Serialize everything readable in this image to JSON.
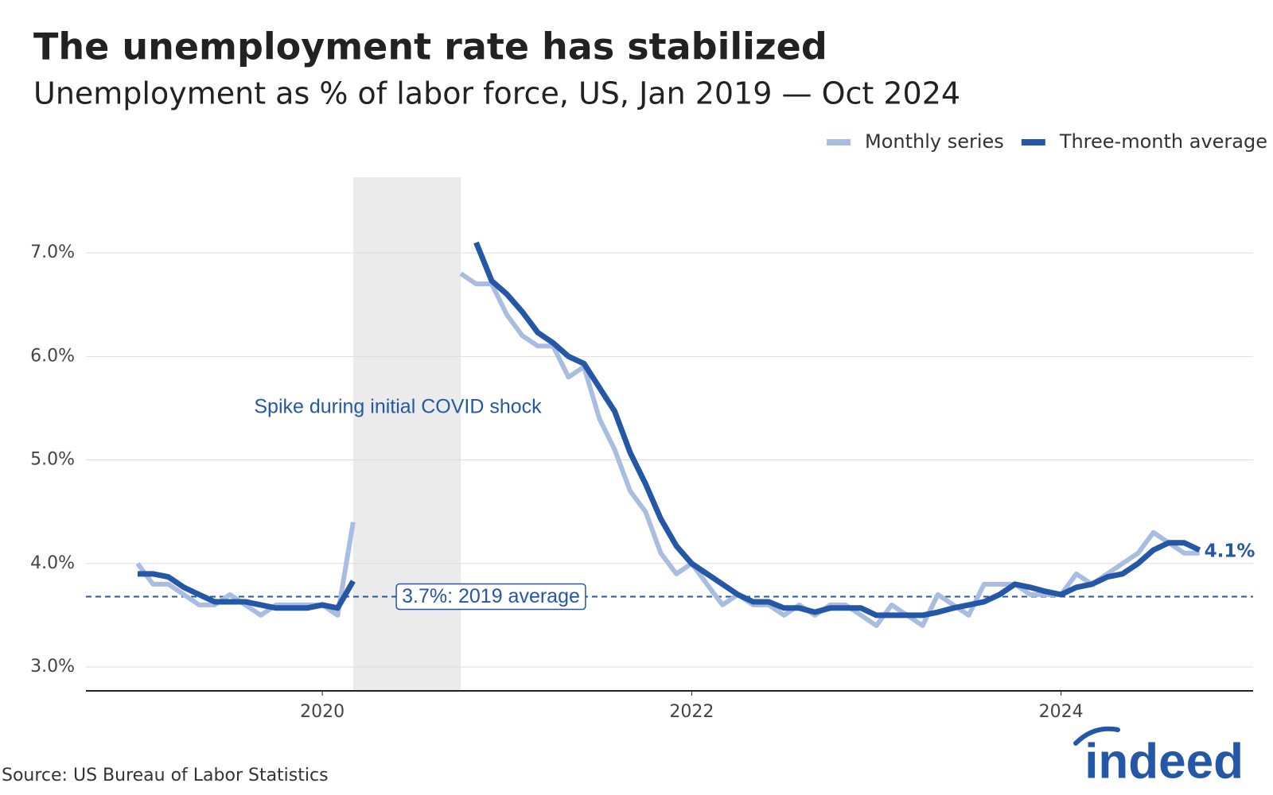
{
  "chart_data": {
    "type": "line",
    "title": "The unemployment rate has stabilized",
    "subtitle": "Unemployment as % of labor force, US, Jan 2019 — Oct 2024",
    "annotation": "Spike during initial COVID shock",
    "source": "Source: US Bureau of Labor Statistics",
    "logo": "indeed",
    "shade": [
      2020.167,
      2020.75
    ],
    "reference": {
      "value": 3.68,
      "label": "3.7%: 2019 average",
      "color": "#2557a7"
    },
    "xlim": [
      2018.72,
      2025.04
    ],
    "xticks": [
      2020,
      2022,
      2024
    ],
    "ylim": [
      2.77,
      7.73
    ],
    "yticks": [
      {
        "value": 3,
        "label": "3.0%"
      },
      {
        "value": 4,
        "label": "4.0%"
      },
      {
        "value": 5,
        "label": "5.0%"
      },
      {
        "value": 6,
        "label": "6.0%"
      },
      {
        "value": 7,
        "label": "7.0%"
      }
    ],
    "grid": true,
    "legend": "top-right",
    "x": [
      2019,
      2019.083,
      2019.167,
      2019.25,
      2019.333,
      2019.417,
      2019.5,
      2019.583,
      2019.667,
      2019.75,
      2019.833,
      2019.917,
      2020,
      2020.083,
      2020.167,
      2020.25,
      2020.333,
      2020.417,
      2020.5,
      2020.583,
      2020.667,
      2020.75,
      2020.833,
      2020.917,
      2021,
      2021.083,
      2021.167,
      2021.25,
      2021.333,
      2021.417,
      2021.5,
      2021.583,
      2021.667,
      2021.75,
      2021.833,
      2021.917,
      2022,
      2022.083,
      2022.167,
      2022.25,
      2022.333,
      2022.417,
      2022.5,
      2022.583,
      2022.667,
      2022.75,
      2022.833,
      2022.917,
      2023,
      2023.083,
      2023.167,
      2023.25,
      2023.333,
      2023.417,
      2023.5,
      2023.583,
      2023.667,
      2023.75,
      2023.833,
      2023.917,
      2024,
      2024.083,
      2024.167,
      2024.25,
      2024.333,
      2024.417,
      2024.5,
      2024.583,
      2024.667,
      2024.75
    ],
    "series": [
      {
        "name": "Monthly series",
        "color": "#a9bde1",
        "values": [
          4.0,
          3.8,
          3.8,
          3.7,
          3.6,
          3.6,
          3.7,
          3.6,
          3.5,
          3.6,
          3.6,
          3.6,
          3.6,
          3.5,
          4.4,
          null,
          null,
          null,
          null,
          null,
          null,
          6.8,
          6.7,
          6.7,
          6.4,
          6.2,
          6.1,
          6.1,
          5.8,
          5.9,
          5.4,
          5.1,
          4.7,
          4.5,
          4.1,
          3.9,
          4.0,
          3.8,
          3.6,
          3.7,
          3.6,
          3.6,
          3.5,
          3.6,
          3.5,
          3.6,
          3.6,
          3.5,
          3.4,
          3.6,
          3.5,
          3.4,
          3.7,
          3.6,
          3.5,
          3.8,
          3.8,
          3.8,
          3.7,
          3.7,
          3.7,
          3.9,
          3.8,
          3.9,
          4.0,
          4.1,
          4.3,
          4.2,
          4.1,
          4.1
        ]
      },
      {
        "name": "Three-month average",
        "color": "#2557a7",
        "values": [
          3.9,
          3.9,
          3.87,
          3.77,
          3.7,
          3.63,
          3.63,
          3.63,
          3.6,
          3.57,
          3.57,
          3.57,
          3.6,
          3.57,
          3.83,
          null,
          null,
          null,
          null,
          null,
          null,
          null,
          7.1,
          6.73,
          6.6,
          6.43,
          6.23,
          6.13,
          6.0,
          5.93,
          5.7,
          5.47,
          5.07,
          4.77,
          4.43,
          4.17,
          4.0,
          3.9,
          3.8,
          3.7,
          3.63,
          3.63,
          3.57,
          3.57,
          3.53,
          3.57,
          3.57,
          3.57,
          3.5,
          3.5,
          3.5,
          3.5,
          3.53,
          3.57,
          3.6,
          3.63,
          3.7,
          3.8,
          3.77,
          3.73,
          3.7,
          3.77,
          3.8,
          3.87,
          3.9,
          4.0,
          4.13,
          4.2,
          4.2,
          4.13
        ],
        "value_labels": [
          null,
          null,
          null,
          null,
          null,
          null,
          null,
          null,
          null,
          null,
          null,
          null,
          null,
          null,
          null,
          null,
          null,
          null,
          null,
          null,
          null,
          null,
          null,
          null,
          null,
          null,
          null,
          null,
          null,
          null,
          null,
          null,
          null,
          null,
          null,
          null,
          null,
          null,
          null,
          null,
          null,
          null,
          null,
          null,
          null,
          null,
          null,
          null,
          null,
          null,
          null,
          null,
          null,
          null,
          null,
          null,
          null,
          null,
          null,
          null,
          null,
          null,
          null,
          null,
          null,
          null,
          null,
          null,
          null,
          "4.1%"
        ]
      }
    ]
  }
}
